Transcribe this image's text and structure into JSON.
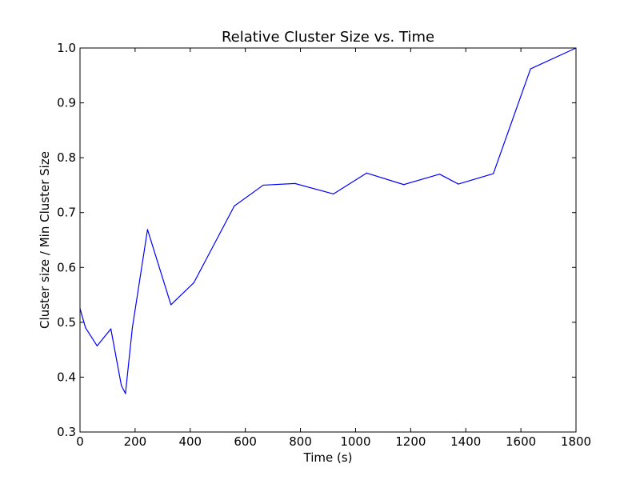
{
  "chart_data": {
    "type": "line",
    "title": "Relative Cluster Size  vs. Time",
    "xlabel": "Time (s)",
    "ylabel": "Cluster size / Min Cluster Size",
    "xlim": [
      0,
      1800
    ],
    "ylim": [
      0.3,
      1.0
    ],
    "xticks": [
      0,
      200,
      400,
      600,
      800,
      1000,
      1200,
      1400,
      1600,
      1800
    ],
    "yticks": [
      0.3,
      0.4,
      0.5,
      0.6,
      0.7,
      0.8,
      0.9,
      1.0
    ],
    "xtick_labels": [
      "0",
      "200",
      "400",
      "600",
      "800",
      "1000",
      "1200",
      "1400",
      "1600",
      "1800"
    ],
    "ytick_labels": [
      "0.3",
      "0.4",
      "0.5",
      "0.6",
      "0.7",
      "0.8",
      "0.9",
      "1.0"
    ],
    "grid": false,
    "legend": false,
    "series": [
      {
        "color": "#0000ff",
        "x": [
          0,
          20,
          62,
          112,
          150,
          165,
          190,
          245,
          330,
          413,
          560,
          665,
          780,
          920,
          1040,
          1175,
          1305,
          1373,
          1500,
          1635,
          1800
        ],
        "y": [
          0.525,
          0.49,
          0.457,
          0.488,
          0.385,
          0.37,
          0.49,
          0.669,
          0.532,
          0.572,
          0.712,
          0.75,
          0.753,
          0.734,
          0.772,
          0.751,
          0.77,
          0.752,
          0.771,
          0.962,
          1.0
        ]
      }
    ]
  }
}
